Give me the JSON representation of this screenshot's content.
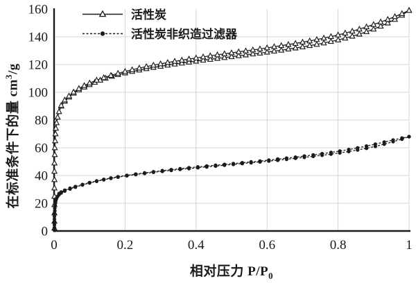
{
  "chart_data": {
    "type": "line",
    "title": "",
    "grid": true,
    "legend_position": "top-inside",
    "colors": {
      "series": "#1a1a1a",
      "gridline": "#d4d4d4",
      "axis": "#1a1a1a",
      "background": "#ffffff"
    },
    "x_axis": {
      "label": "相对压力 P/P0",
      "label_prefix": "相对压力 P/P",
      "label_sub": "0",
      "lim": [
        0,
        1
      ],
      "ticks": [
        0,
        0.2,
        0.4,
        0.6,
        0.8,
        1
      ],
      "tick_labels": [
        "0",
        "0.2",
        "0.4",
        "0.6",
        "0.8",
        "1"
      ]
    },
    "y_axis": {
      "label": "在标准条件下的量 cm3/g",
      "label_prefix": "在标准条件下的量 cm",
      "label_sup": "3",
      "label_suffix": "/g",
      "lim": [
        0,
        160
      ],
      "ticks": [
        0,
        20,
        40,
        60,
        80,
        100,
        120,
        140,
        160
      ],
      "tick_labels": [
        "0",
        "20",
        "40",
        "60",
        "80",
        "100",
        "120",
        "140",
        "160"
      ]
    },
    "series": [
      {
        "name": "活性炭",
        "marker": "triangle-open",
        "line": "solid",
        "color": "#1a1a1a",
        "branches": [
          [
            [
              0.001,
              2
            ],
            [
              0.001,
              7
            ],
            [
              0.001,
              13
            ],
            [
              0.001,
              19
            ],
            [
              0.001,
              25
            ],
            [
              0.001,
              31
            ],
            [
              0.001,
              37
            ],
            [
              0.001,
              43
            ],
            [
              0.001,
              49
            ],
            [
              0.002,
              55
            ],
            [
              0.002,
              60
            ],
            [
              0.003,
              65
            ],
            [
              0.004,
              70
            ],
            [
              0.005,
              74
            ],
            [
              0.007,
              78
            ],
            [
              0.01,
              82
            ],
            [
              0.014,
              86
            ],
            [
              0.02,
              90
            ],
            [
              0.03,
              93.5
            ],
            [
              0.042,
              96.5
            ],
            [
              0.055,
              99.3
            ],
            [
              0.07,
              101.7
            ],
            [
              0.085,
              103.7
            ],
            [
              0.1,
              105.5
            ],
            [
              0.115,
              107.2
            ],
            [
              0.13,
              108.7
            ],
            [
              0.145,
              110.1
            ],
            [
              0.163,
              111.5
            ],
            [
              0.18,
              112.7
            ],
            [
              0.2,
              113.9
            ],
            [
              0.22,
              115
            ],
            [
              0.24,
              116
            ],
            [
              0.26,
              117
            ],
            [
              0.28,
              117.9
            ],
            [
              0.3,
              118.7
            ],
            [
              0.32,
              119.5
            ],
            [
              0.34,
              120.3
            ],
            [
              0.36,
              121
            ],
            [
              0.38,
              121.7
            ],
            [
              0.4,
              122.4
            ],
            [
              0.42,
              123.1
            ],
            [
              0.44,
              123.7
            ],
            [
              0.46,
              124.4
            ],
            [
              0.48,
              125
            ],
            [
              0.5,
              125.6
            ],
            [
              0.52,
              126.3
            ],
            [
              0.54,
              126.9
            ],
            [
              0.56,
              127.6
            ],
            [
              0.58,
              128.2
            ],
            [
              0.6,
              128.9
            ],
            [
              0.62,
              129.6
            ],
            [
              0.64,
              130.3
            ],
            [
              0.66,
              131.1
            ],
            [
              0.68,
              131.9
            ],
            [
              0.7,
              132.7
            ],
            [
              0.72,
              133.6
            ],
            [
              0.74,
              134.5
            ],
            [
              0.76,
              135.5
            ],
            [
              0.78,
              136.6
            ],
            [
              0.8,
              137.7
            ],
            [
              0.82,
              139
            ],
            [
              0.84,
              140.4
            ],
            [
              0.86,
              141.9
            ],
            [
              0.88,
              143.6
            ],
            [
              0.9,
              145.5
            ],
            [
              0.92,
              147.6
            ],
            [
              0.94,
              149.9
            ],
            [
              0.96,
              152.5
            ],
            [
              0.98,
              155.5
            ],
            [
              1,
              159
            ]
          ],
          [
            [
              1,
              159
            ],
            [
              0.98,
              156.7
            ],
            [
              0.96,
              154.5
            ],
            [
              0.94,
              152.5
            ],
            [
              0.92,
              150.6
            ],
            [
              0.9,
              148.8
            ],
            [
              0.88,
              147.1
            ],
            [
              0.86,
              145.5
            ],
            [
              0.84,
              144
            ],
            [
              0.82,
              142.6
            ],
            [
              0.8,
              141.3
            ],
            [
              0.78,
              140.1
            ],
            [
              0.76,
              139
            ],
            [
              0.74,
              138
            ],
            [
              0.72,
              137
            ],
            [
              0.7,
              136.1
            ],
            [
              0.68,
              135.2
            ],
            [
              0.66,
              134.4
            ],
            [
              0.64,
              133.6
            ],
            [
              0.62,
              132.8
            ],
            [
              0.6,
              132
            ],
            [
              0.58,
              131.2
            ],
            [
              0.56,
              130.5
            ],
            [
              0.54,
              129.8
            ],
            [
              0.52,
              129.1
            ],
            [
              0.5,
              128.4
            ],
            [
              0.48,
              127.7
            ],
            [
              0.46,
              127
            ],
            [
              0.44,
              126.3
            ],
            [
              0.42,
              125.5
            ],
            [
              0.4,
              124.7
            ],
            [
              0.38,
              123.9
            ],
            [
              0.36,
              123.1
            ],
            [
              0.34,
              122.3
            ],
            [
              0.32,
              121.4
            ],
            [
              0.3,
              120.5
            ],
            [
              0.28,
              119.5
            ],
            [
              0.26,
              118.5
            ],
            [
              0.24,
              117.4
            ],
            [
              0.22,
              116.2
            ],
            [
              0.2,
              115
            ],
            [
              0.18,
              113.6
            ],
            [
              0.16,
              112.1
            ],
            [
              0.14,
              110.5
            ],
            [
              0.12,
              108.7
            ],
            [
              0.1,
              106.6
            ],
            [
              0.085,
              104.8
            ],
            [
              0.07,
              102.7
            ],
            [
              0.055,
              100.1
            ],
            [
              0.042,
              97.3
            ],
            [
              0.03,
              94.4
            ],
            [
              0.02,
              90.5
            ]
          ]
        ]
      },
      {
        "name": "活性炭非织造过滤器",
        "marker": "circle-filled",
        "line": "dashed",
        "color": "#1a1a1a",
        "branches": [
          [
            [
              0.001,
              0.5
            ],
            [
              0.001,
              2.5
            ],
            [
              0.001,
              4.5
            ],
            [
              0.001,
              6.5
            ],
            [
              0.001,
              8.5
            ],
            [
              0.001,
              10.5
            ],
            [
              0.001,
              12.5
            ],
            [
              0.002,
              14.5
            ],
            [
              0.002,
              16.5
            ],
            [
              0.003,
              18.5
            ],
            [
              0.004,
              20.3
            ],
            [
              0.005,
              22
            ],
            [
              0.007,
              23.5
            ],
            [
              0.01,
              25
            ],
            [
              0.014,
              26.2
            ],
            [
              0.02,
              27.4
            ],
            [
              0.03,
              28.8
            ],
            [
              0.045,
              30.3
            ],
            [
              0.06,
              31.6
            ],
            [
              0.08,
              33.2
            ],
            [
              0.1,
              34.6
            ],
            [
              0.12,
              35.8
            ],
            [
              0.14,
              36.9
            ],
            [
              0.16,
              37.9
            ],
            [
              0.18,
              38.8
            ],
            [
              0.205,
              39.8
            ],
            [
              0.23,
              40.7
            ],
            [
              0.255,
              41.5
            ],
            [
              0.28,
              42.3
            ],
            [
              0.305,
              43
            ],
            [
              0.33,
              43.7
            ],
            [
              0.355,
              44.4
            ],
            [
              0.38,
              45
            ],
            [
              0.405,
              45.6
            ],
            [
              0.43,
              46.2
            ],
            [
              0.455,
              46.8
            ],
            [
              0.48,
              47.4
            ],
            [
              0.505,
              48
            ],
            [
              0.53,
              48.6
            ],
            [
              0.555,
              49.2
            ],
            [
              0.58,
              49.8
            ],
            [
              0.605,
              50.4
            ],
            [
              0.63,
              51
            ],
            [
              0.655,
              51.7
            ],
            [
              0.68,
              52.4
            ],
            [
              0.705,
              53.1
            ],
            [
              0.73,
              53.8
            ],
            [
              0.755,
              54.6
            ],
            [
              0.78,
              55.4
            ],
            [
              0.805,
              56.3
            ],
            [
              0.83,
              57.3
            ],
            [
              0.855,
              58.4
            ],
            [
              0.88,
              59.6
            ],
            [
              0.905,
              61
            ],
            [
              0.93,
              62.6
            ],
            [
              0.955,
              64.4
            ],
            [
              0.98,
              66.2
            ],
            [
              1,
              68
            ]
          ],
          [
            [
              1,
              68
            ],
            [
              0.98,
              67
            ],
            [
              0.955,
              65.6
            ],
            [
              0.93,
              64.1
            ],
            [
              0.905,
              62.6
            ],
            [
              0.88,
              61.2
            ],
            [
              0.855,
              59.9
            ],
            [
              0.83,
              58.7
            ],
            [
              0.805,
              57.6
            ],
            [
              0.78,
              56.6
            ],
            [
              0.755,
              55.7
            ],
            [
              0.73,
              54.8
            ],
            [
              0.705,
              54
            ],
            [
              0.68,
              53.2
            ],
            [
              0.655,
              52.5
            ],
            [
              0.63,
              51.8
            ],
            [
              0.605,
              51.1
            ],
            [
              0.58,
              50.4
            ],
            [
              0.555,
              49.8
            ],
            [
              0.53,
              49.2
            ],
            [
              0.505,
              48.6
            ],
            [
              0.48,
              48
            ],
            [
              0.455,
              47.4
            ],
            [
              0.43,
              46.8
            ],
            [
              0.405,
              46.2
            ],
            [
              0.38,
              45.6
            ],
            [
              0.355,
              44.9
            ],
            [
              0.33,
              44.2
            ],
            [
              0.305,
              43.5
            ],
            [
              0.28,
              42.7
            ],
            [
              0.255,
              41.9
            ],
            [
              0.23,
              41
            ],
            [
              0.205,
              40.1
            ],
            [
              0.18,
              39.1
            ],
            [
              0.16,
              38.2
            ],
            [
              0.14,
              37.2
            ],
            [
              0.12,
              36.1
            ],
            [
              0.1,
              34.9
            ],
            [
              0.08,
              33.5
            ],
            [
              0.06,
              32
            ],
            [
              0.045,
              30.8
            ],
            [
              0.03,
              29.4
            ],
            [
              0.02,
              28.1
            ],
            [
              0.014,
              27
            ]
          ]
        ]
      }
    ]
  }
}
